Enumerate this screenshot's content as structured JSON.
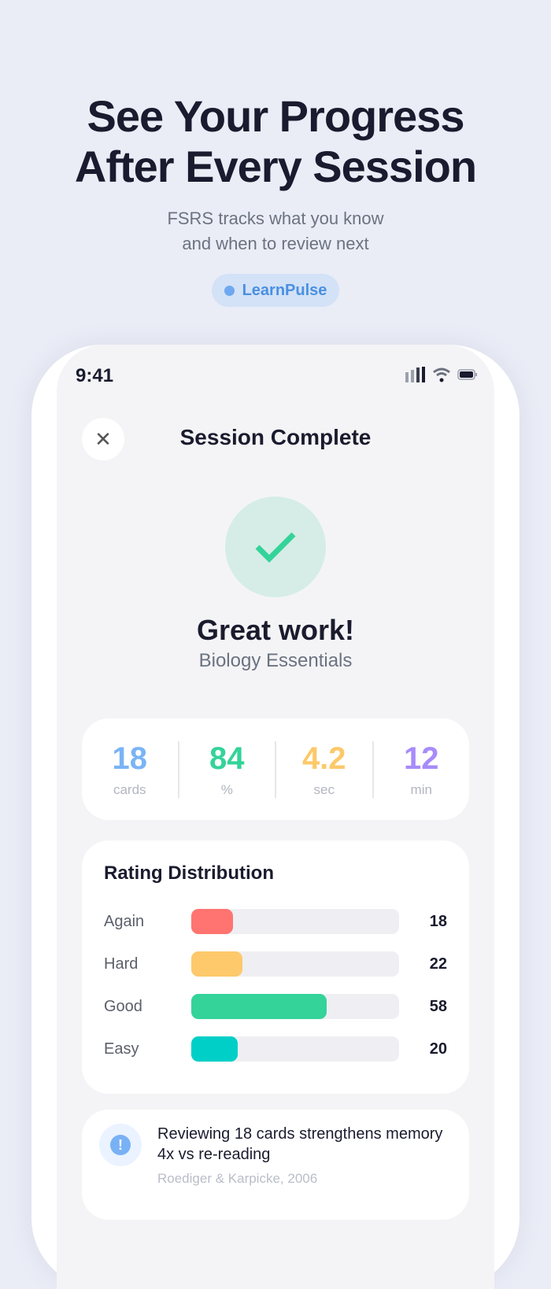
{
  "hero": {
    "title_line1": "See Your Progress",
    "title_line2": "After Every Session",
    "subtitle_line1": "FSRS tracks what you know",
    "subtitle_line2": "and when to review next",
    "badge": "LearnPulse"
  },
  "status_bar": {
    "time": "9:41",
    "icons": [
      "cellular-icon",
      "wifi-icon",
      "battery-icon"
    ]
  },
  "header": {
    "title": "Session Complete",
    "close_icon": "close-icon"
  },
  "result": {
    "icon": "check-icon",
    "headline": "Great work!",
    "deck": "Biology Essentials"
  },
  "stats": [
    {
      "value": "18",
      "unit": "cards",
      "color": "#7ab4f5"
    },
    {
      "value": "84",
      "unit": "%",
      "color": "#34d399"
    },
    {
      "value": "4.2",
      "unit": "sec",
      "color": "#fcc96a"
    },
    {
      "value": "12",
      "unit": "min",
      "color": "#a78bfa"
    }
  ],
  "distribution": {
    "title": "Rating Distribution",
    "rows": [
      {
        "label": "Again",
        "value": 18,
        "color": "#ff7470"
      },
      {
        "label": "Hard",
        "value": 22,
        "color": "#fdc96b"
      },
      {
        "label": "Good",
        "value": 58,
        "color": "#34d399"
      },
      {
        "label": "Easy",
        "value": 20,
        "color": "#00cfc8"
      }
    ]
  },
  "tip": {
    "icon": "info-icon",
    "text": "Reviewing 18 cards strengthens memory 4x vs re-reading",
    "source": "Roediger & Karpicke, 2006"
  }
}
